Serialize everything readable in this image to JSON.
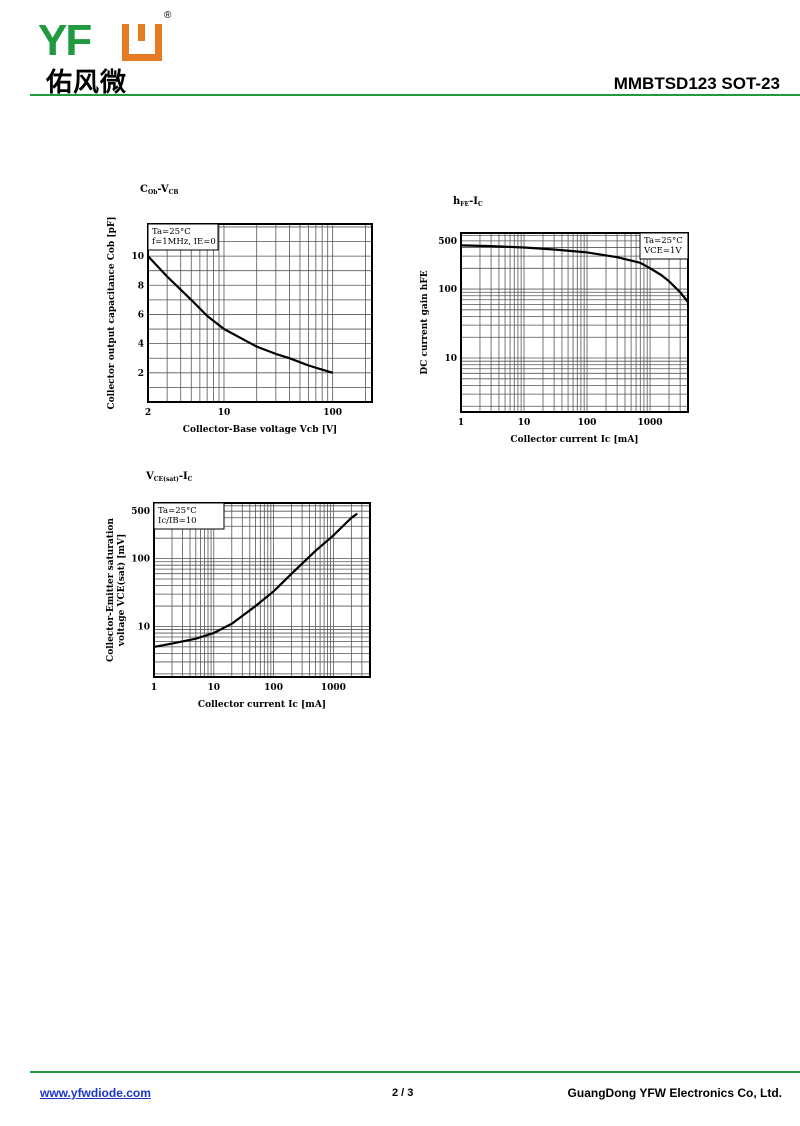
{
  "header": {
    "logo_text": "YFW",
    "logo_cn": "佑风微",
    "logo_registered": "®",
    "title": "MMBTSD123   SOT-23",
    "line_color": "#1f9a3e"
  },
  "footer": {
    "website": "www.yfwdiode.com",
    "page": "2 / 3",
    "company": "GuangDong YFW Electronics Co, Ltd."
  },
  "chart_data": [
    {
      "type": "line",
      "title_parts": [
        {
          "t": "C"
        },
        {
          "s": "Ob"
        },
        {
          "t": "-V"
        },
        {
          "s": "CB"
        }
      ],
      "xlabel": "Collector-Base voltage Vcb [V]",
      "ylabel": [
        "Collector output capacitance Cob [pF]"
      ],
      "xscale": "log",
      "yscale": "linear",
      "xlim": [
        2,
        230
      ],
      "ylim": [
        0,
        12.2
      ],
      "xticks": [
        2,
        10,
        100
      ],
      "xtick_labels": [
        "2",
        "10",
        "100"
      ],
      "yticks": [
        2,
        4,
        6,
        8,
        10
      ],
      "ytick_labels": [
        "2",
        "4",
        "6",
        "8",
        "10"
      ],
      "grid": true,
      "annotation": [
        "Ta=25°C",
        "f=1MHz,  IE=0"
      ],
      "annotation_position": "top-left",
      "series": [
        {
          "x": [
            2,
            3,
            5,
            7,
            10,
            15,
            20,
            30,
            40,
            60,
            100
          ],
          "y": [
            10,
            8.6,
            7,
            5.9,
            5,
            4.3,
            3.8,
            3.3,
            3,
            2.5,
            2
          ]
        }
      ]
    },
    {
      "type": "line",
      "title_parts": [
        {
          "t": "h"
        },
        {
          "s": "FE"
        },
        {
          "t": "-I"
        },
        {
          "s": "C"
        }
      ],
      "xlabel": "Collector current Ic [mA]",
      "ylabel": [
        "DC current gain hFE"
      ],
      "xscale": "log",
      "yscale": "log",
      "xlim": [
        1,
        4000
      ],
      "ylim": [
        1.65,
        650
      ],
      "xticks": [
        1,
        10,
        100,
        1000
      ],
      "xtick_labels": [
        "1",
        "10",
        "100",
        "1000"
      ],
      "yticks": [
        10,
        100,
        500
      ],
      "ytick_labels": [
        "10",
        "100",
        "500"
      ],
      "grid": true,
      "annotation": [
        "Ta=25°C",
        "VCE=1V"
      ],
      "annotation_position": "top-right",
      "series": [
        {
          "x": [
            1,
            3,
            10,
            30,
            100,
            300,
            700,
            1000,
            1500,
            2000,
            3000,
            4000
          ],
          "y": [
            430,
            420,
            400,
            375,
            340,
            290,
            240,
            200,
            160,
            130,
            90,
            65
          ]
        }
      ]
    },
    {
      "type": "line",
      "title_parts": [
        {
          "t": "V"
        },
        {
          "s": "CE(sat)"
        },
        {
          "t": "-I"
        },
        {
          "s": "C"
        }
      ],
      "xlabel": "Collector current Ic [mA]",
      "ylabel": [
        "Collector-Emitter saturation",
        "voltage VCE(sat) [mV]"
      ],
      "xscale": "log",
      "yscale": "log",
      "xlim": [
        1,
        4100
      ],
      "ylim": [
        1.8,
        660
      ],
      "xticks": [
        1,
        10,
        100,
        1000
      ],
      "xtick_labels": [
        "1",
        "10",
        "100",
        "1000"
      ],
      "yticks": [
        10,
        100,
        500
      ],
      "ytick_labels": [
        "10",
        "100",
        "500"
      ],
      "grid": true,
      "annotation": [
        "Ta=25°C",
        "Ic/IB=10"
      ],
      "annotation_position": "top-left",
      "series": [
        {
          "x": [
            1,
            2,
            5,
            10,
            20,
            50,
            100,
            200,
            500,
            1000,
            2000,
            2500
          ],
          "y": [
            5,
            5.6,
            6.6,
            8,
            11,
            20,
            33,
            60,
            130,
            220,
            400,
            460
          ]
        }
      ]
    }
  ]
}
